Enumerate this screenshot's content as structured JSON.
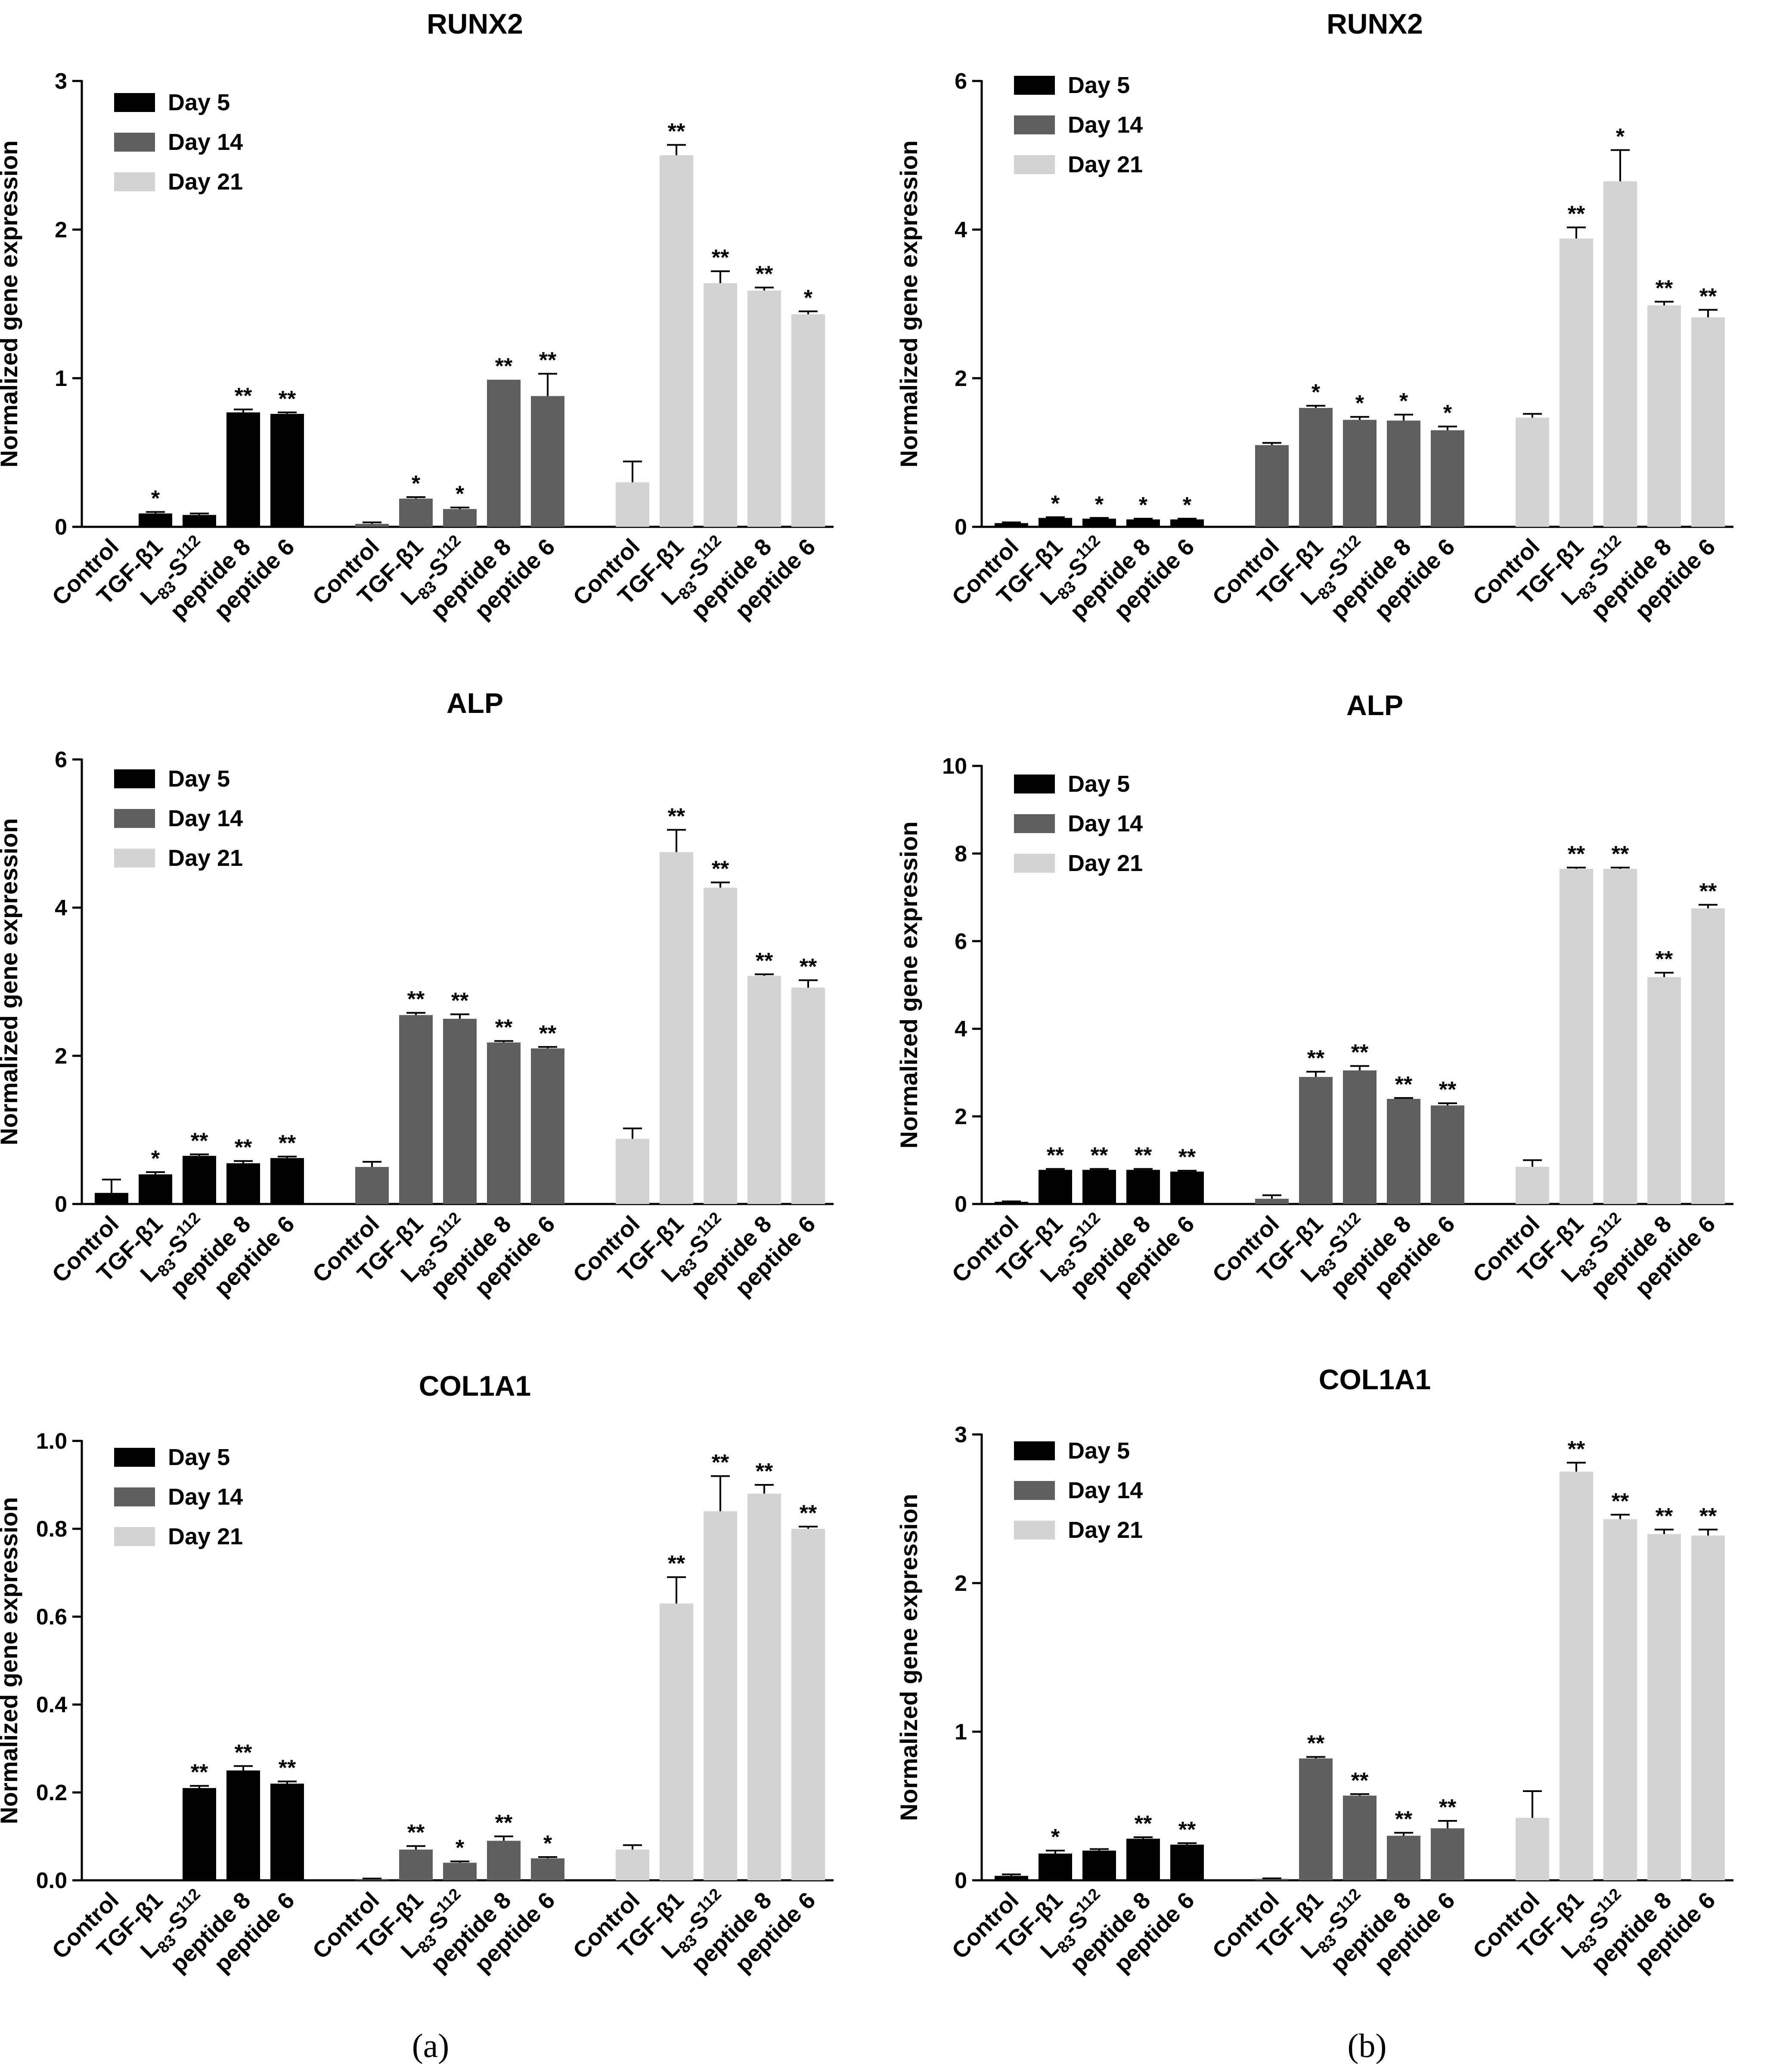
{
  "figure": {
    "panel_labels": [
      "(a)",
      "(b)"
    ],
    "legend_labels": [
      "Day 5",
      "Day 14",
      "Day 21"
    ],
    "group_colors": [
      "#000000",
      "#5f5f5f",
      "#d3d3d3"
    ],
    "category_labels": [
      "Control",
      "TGF-β1",
      "L83-S112",
      "peptide 8",
      "peptide 6"
    ],
    "ylabel": "Normalized gene expression"
  },
  "chart_data": [
    {
      "id": "a-runx2",
      "type": "bar",
      "title": "RUNX2",
      "ylabel": "Normalized gene expression",
      "ylim": [
        0,
        3
      ],
      "yticks": [
        "0",
        "1",
        "2",
        "3"
      ],
      "categories": [
        "Control",
        "TGF-β1",
        "L83-S112",
        "peptide 8",
        "peptide 6"
      ],
      "series": [
        {
          "name": "Day 5",
          "values": [
            0.0,
            0.09,
            0.08,
            0.77,
            0.76
          ],
          "errors": [
            0,
            0.01,
            0.01,
            0.02,
            0.01
          ],
          "sig": [
            "",
            "*",
            "",
            "**",
            "**"
          ]
        },
        {
          "name": "Day 14",
          "values": [
            0.02,
            0.19,
            0.12,
            0.99,
            0.88
          ],
          "errors": [
            0.01,
            0.01,
            0.01,
            0.0,
            0.15
          ],
          "sig": [
            "",
            "*",
            "*",
            "**",
            "**"
          ]
        },
        {
          "name": "Day 21",
          "values": [
            0.3,
            2.5,
            1.64,
            1.59,
            1.43
          ],
          "errors": [
            0.14,
            0.07,
            0.08,
            0.02,
            0.02
          ],
          "sig": [
            "",
            "**",
            "**",
            "**",
            "*"
          ]
        }
      ]
    },
    {
      "id": "b-runx2",
      "type": "bar",
      "title": "RUNX2",
      "ylabel": "Normalized gene expression",
      "ylim": [
        0,
        6
      ],
      "yticks": [
        "0",
        "2",
        "4",
        "6"
      ],
      "categories": [
        "Control",
        "TGF-β1",
        "L83-S112",
        "peptide 8",
        "peptide 6"
      ],
      "series": [
        {
          "name": "Day 5",
          "values": [
            0.05,
            0.12,
            0.11,
            0.1,
            0.1
          ],
          "errors": [
            0.01,
            0.01,
            0.01,
            0.01,
            0.01
          ],
          "sig": [
            "",
            "*",
            "*",
            "*",
            "*"
          ]
        },
        {
          "name": "Day 14",
          "values": [
            1.1,
            1.6,
            1.44,
            1.43,
            1.3
          ],
          "errors": [
            0.03,
            0.03,
            0.04,
            0.08,
            0.05
          ],
          "sig": [
            "",
            "*",
            "*",
            "*",
            "*"
          ]
        },
        {
          "name": "Day 21",
          "values": [
            1.47,
            3.88,
            4.65,
            2.98,
            2.82
          ],
          "errors": [
            0.05,
            0.15,
            0.42,
            0.05,
            0.1
          ],
          "sig": [
            "",
            "**",
            "*",
            "**",
            "**"
          ]
        }
      ]
    },
    {
      "id": "a-alp",
      "type": "bar",
      "title": "ALP",
      "ylabel": "Normalized gene expression",
      "ylim": [
        0,
        6
      ],
      "yticks": [
        "0",
        "2",
        "4",
        "6"
      ],
      "categories": [
        "Control",
        "TGF-β1",
        "L83-S112",
        "peptide 8",
        "peptide 6"
      ],
      "series": [
        {
          "name": "Day 5",
          "values": [
            0.15,
            0.4,
            0.65,
            0.55,
            0.62
          ],
          "errors": [
            0.18,
            0.03,
            0.02,
            0.03,
            0.02
          ],
          "sig": [
            "",
            "*",
            "**",
            "**",
            "**"
          ]
        },
        {
          "name": "Day 14",
          "values": [
            0.5,
            2.55,
            2.5,
            2.18,
            2.1
          ],
          "errors": [
            0.07,
            0.03,
            0.06,
            0.02,
            0.02
          ],
          "sig": [
            "",
            "**",
            "**",
            "**",
            "**"
          ]
        },
        {
          "name": "Day 21",
          "values": [
            0.88,
            4.75,
            4.27,
            3.08,
            2.92
          ],
          "errors": [
            0.14,
            0.3,
            0.07,
            0.02,
            0.1
          ],
          "sig": [
            "",
            "**",
            "**",
            "**",
            "**"
          ]
        }
      ]
    },
    {
      "id": "b-alp",
      "type": "bar",
      "title": "ALP",
      "ylabel": "Normalized gene expression",
      "ylim": [
        0,
        10
      ],
      "yticks": [
        "0",
        "2",
        "4",
        "6",
        "8",
        "10"
      ],
      "categories": [
        "Control",
        "TGF-β1",
        "L83-S112",
        "peptide 8",
        "peptide 6"
      ],
      "series": [
        {
          "name": "Day 5",
          "values": [
            0.05,
            0.78,
            0.78,
            0.78,
            0.74
          ],
          "errors": [
            0.01,
            0.02,
            0.02,
            0.02,
            0.02
          ],
          "sig": [
            "",
            "**",
            "**",
            "**",
            "**"
          ]
        },
        {
          "name": "Day 14",
          "values": [
            0.12,
            2.9,
            3.05,
            2.4,
            2.25
          ],
          "errors": [
            0.08,
            0.12,
            0.1,
            0.02,
            0.05
          ],
          "sig": [
            "",
            "**",
            "**",
            "**",
            "**"
          ]
        },
        {
          "name": "Day 21",
          "values": [
            0.85,
            7.65,
            7.65,
            5.18,
            6.75
          ],
          "errors": [
            0.15,
            0.03,
            0.03,
            0.1,
            0.08
          ],
          "sig": [
            "",
            "**",
            "**",
            "**",
            "**"
          ]
        }
      ]
    },
    {
      "id": "a-col1a1",
      "type": "bar",
      "title": "COL1A1",
      "ylabel": "Normalized gene expression",
      "ylim": [
        0,
        1.0
      ],
      "yticks": [
        "0.0",
        "0.2",
        "0.4",
        "0.6",
        "0.8",
        "1.0"
      ],
      "categories": [
        "Control",
        "TGF-β1",
        "L83-S112",
        "peptide 8",
        "peptide 6"
      ],
      "series": [
        {
          "name": "Day 5",
          "values": [
            0.0,
            0.0,
            0.21,
            0.25,
            0.22
          ],
          "errors": [
            0,
            0,
            0.005,
            0.01,
            0.005
          ],
          "sig": [
            "",
            "",
            "**",
            "**",
            "**"
          ]
        },
        {
          "name": "Day 14",
          "values": [
            0.003,
            0.07,
            0.04,
            0.09,
            0.05
          ],
          "errors": [
            0.001,
            0.008,
            0.003,
            0.01,
            0.003
          ],
          "sig": [
            "",
            "**",
            "*",
            "**",
            "*"
          ]
        },
        {
          "name": "Day 21",
          "values": [
            0.07,
            0.63,
            0.84,
            0.88,
            0.8
          ],
          "errors": [
            0.01,
            0.06,
            0.08,
            0.02,
            0.005
          ],
          "sig": [
            "",
            "**",
            "**",
            "**",
            "**"
          ]
        }
      ]
    },
    {
      "id": "b-col1a1",
      "type": "bar",
      "title": "COL1A1",
      "ylabel": "Normalized gene expression",
      "ylim": [
        0,
        3
      ],
      "yticks": [
        "0",
        "1",
        "2",
        "3"
      ],
      "categories": [
        "Control",
        "TGF-β1",
        "L83-S112",
        "peptide 8",
        "peptide 6"
      ],
      "series": [
        {
          "name": "Day 5",
          "values": [
            0.03,
            0.18,
            0.2,
            0.28,
            0.24
          ],
          "errors": [
            0.01,
            0.02,
            0.01,
            0.01,
            0.01
          ],
          "sig": [
            "",
            "*",
            "",
            "**",
            "**"
          ]
        },
        {
          "name": "Day 14",
          "values": [
            0.01,
            0.82,
            0.57,
            0.3,
            0.35
          ],
          "errors": [
            0.003,
            0.01,
            0.01,
            0.02,
            0.05
          ],
          "sig": [
            "",
            "**",
            "**",
            "**",
            "**"
          ]
        },
        {
          "name": "Day 21",
          "values": [
            0.42,
            2.75,
            2.43,
            2.33,
            2.32
          ],
          "errors": [
            0.18,
            0.06,
            0.03,
            0.03,
            0.04
          ],
          "sig": [
            "",
            "**",
            "**",
            "**",
            "**"
          ]
        }
      ]
    }
  ]
}
